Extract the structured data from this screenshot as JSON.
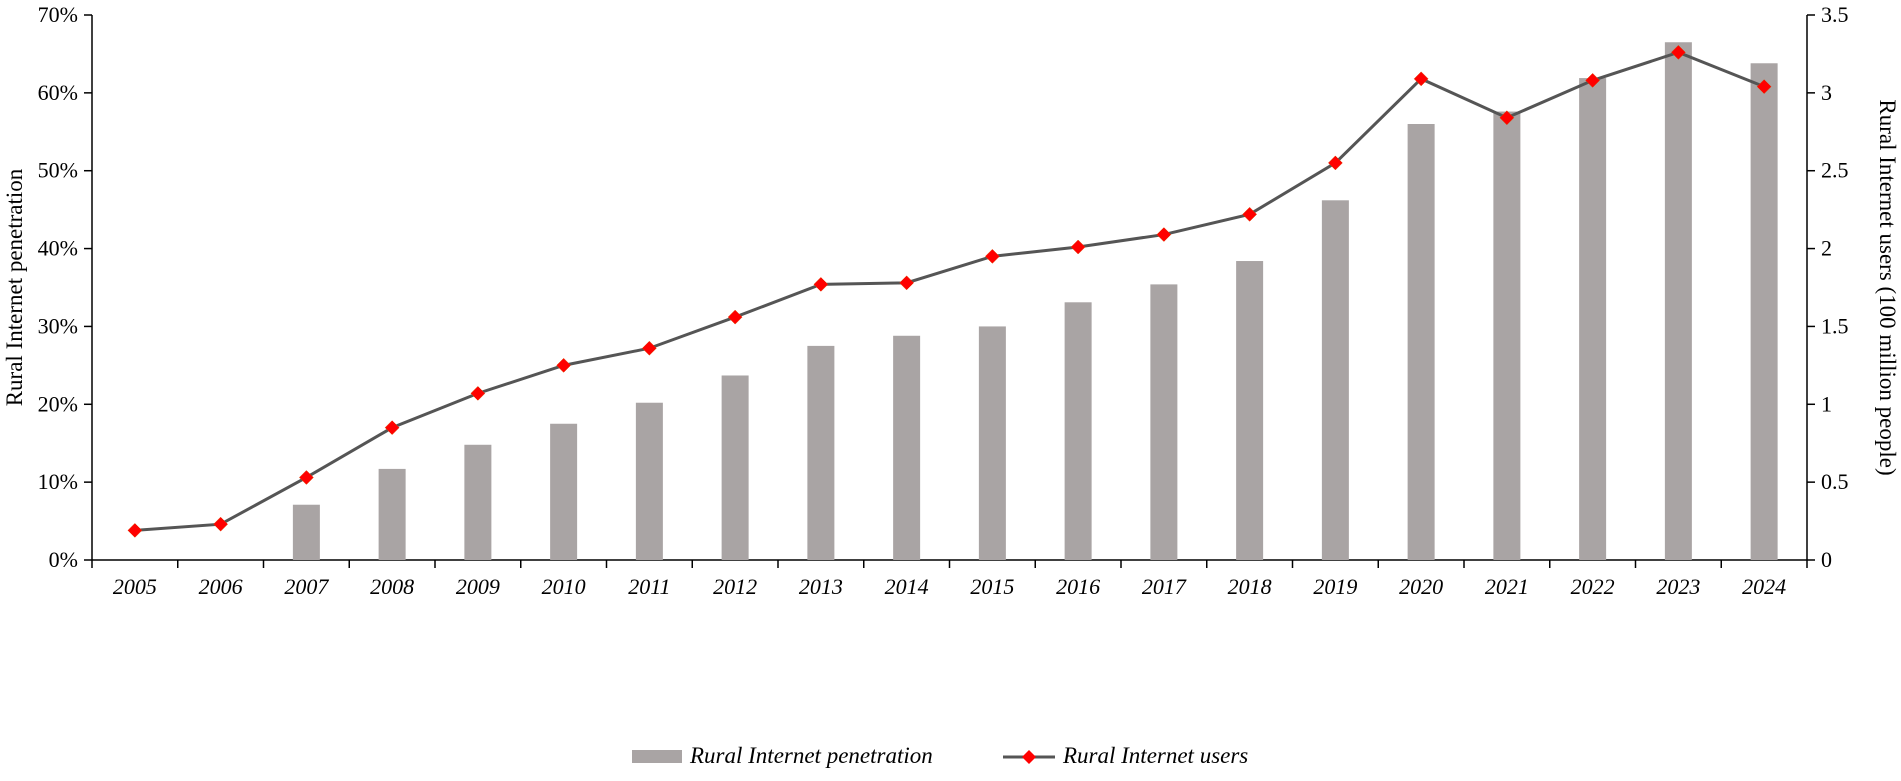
{
  "chart_data": {
    "type": "bar+line",
    "categories": [
      "2005",
      "2006",
      "2007",
      "2008",
      "2009",
      "2010",
      "2011",
      "2012",
      "2013",
      "2014",
      "2015",
      "2016",
      "2017",
      "2018",
      "2019",
      "2020",
      "2021",
      "2022",
      "2023",
      "2024"
    ],
    "series": [
      {
        "name": "Rural Internet penetration",
        "type": "bar",
        "axis": "left",
        "values": [
          null,
          null,
          7.1,
          11.7,
          14.8,
          17.5,
          20.2,
          23.7,
          27.5,
          28.8,
          30.0,
          33.1,
          35.4,
          38.4,
          46.2,
          56.0,
          57.6,
          61.9,
          66.5,
          63.8
        ],
        "color": "#a9a4a4"
      },
      {
        "name": "Rural Internet users",
        "type": "line",
        "axis": "right",
        "values": [
          0.19,
          0.23,
          0.53,
          0.85,
          1.07,
          1.25,
          1.36,
          1.56,
          1.77,
          1.78,
          1.95,
          2.01,
          2.09,
          2.22,
          2.55,
          3.09,
          2.84,
          3.08,
          3.26,
          3.04
        ],
        "line_color": "#555555",
        "marker_color": "#ff0000",
        "marker": "diamond"
      }
    ],
    "y_left": {
      "label": "Rural Internet penetration",
      "ylim": [
        0,
        70
      ],
      "ticks": [
        "0%",
        "10%",
        "20%",
        "30%",
        "40%",
        "50%",
        "60%",
        "70%"
      ]
    },
    "y_right": {
      "label": "Rural Internet users (100 million people)",
      "ylim": [
        0,
        3.5
      ],
      "ticks": [
        "0",
        "0.5",
        "1",
        "1.5",
        "2",
        "2.5",
        "3",
        "3.5"
      ]
    },
    "grid": false,
    "legend_position": "bottom-center",
    "legend": [
      "Rural Internet penetration",
      "Rural Internet users"
    ]
  }
}
